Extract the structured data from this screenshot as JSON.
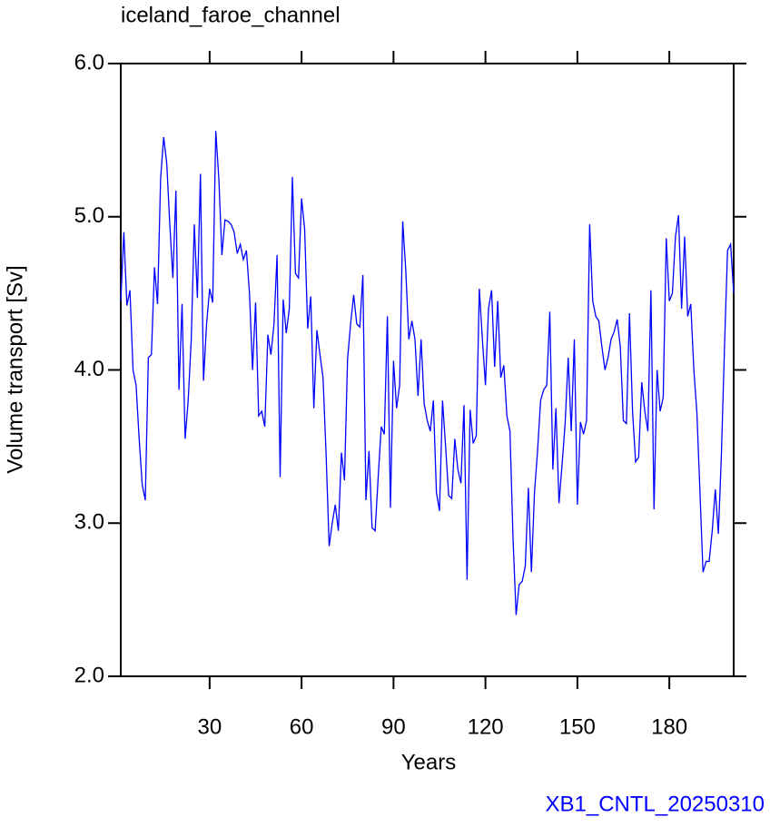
{
  "chart_data": {
    "type": "line",
    "title": "iceland_faroe_channel",
    "x_label": "Years",
    "y_label": "Volume transport [Sv]",
    "annotation": "XB1_CNTL_20250310",
    "xlim": [
      1,
      201
    ],
    "ylim": [
      2,
      6
    ],
    "xticks": [
      30,
      60,
      90,
      120,
      150,
      180
    ],
    "yticks": [
      {
        "value": 2,
        "label": "2.0"
      },
      {
        "value": 3,
        "label": "3.0"
      },
      {
        "value": 4,
        "label": "4.0"
      },
      {
        "value": 5,
        "label": "5.0"
      },
      {
        "value": 6,
        "label": "6.0"
      }
    ],
    "series": [
      {
        "color": "#0000ff",
        "x": [
          1,
          2,
          3,
          4,
          5,
          6,
          7,
          8,
          9,
          10,
          11,
          12,
          13,
          14,
          15,
          16,
          17,
          18,
          19,
          20,
          21,
          22,
          23,
          24,
          25,
          26,
          27,
          28,
          29,
          30,
          31,
          32,
          33,
          34,
          35,
          36,
          37,
          38,
          39,
          40,
          41,
          42,
          43,
          44,
          45,
          46,
          47,
          48,
          49,
          50,
          51,
          52,
          53,
          54,
          55,
          56,
          57,
          58,
          59,
          60,
          61,
          62,
          63,
          64,
          65,
          66,
          67,
          68,
          69,
          70,
          71,
          72,
          73,
          74,
          75,
          76,
          77,
          78,
          79,
          80,
          81,
          82,
          83,
          84,
          85,
          86,
          87,
          88,
          89,
          90,
          91,
          92,
          93,
          94,
          95,
          96,
          97,
          98,
          99,
          100,
          101,
          102,
          103,
          104,
          105,
          106,
          107,
          108,
          109,
          110,
          111,
          112,
          113,
          114,
          115,
          116,
          117,
          118,
          119,
          120,
          121,
          122,
          123,
          124,
          125,
          126,
          127,
          128,
          129,
          130,
          131,
          132,
          133,
          134,
          135,
          136,
          137,
          138,
          139,
          140,
          141,
          142,
          143,
          144,
          145,
          146,
          147,
          148,
          149,
          150,
          151,
          152,
          153,
          154,
          155,
          156,
          157,
          158,
          159,
          160,
          161,
          162,
          163,
          164,
          165,
          166,
          167,
          168,
          169,
          170,
          171,
          172,
          173,
          174,
          175,
          176,
          177,
          178,
          179,
          180,
          181,
          182,
          183,
          184,
          185,
          186,
          187,
          188,
          189,
          190,
          191,
          192,
          193,
          194,
          195,
          196,
          197,
          198,
          199,
          200,
          201
        ],
        "values": [
          4.45,
          4.9,
          4.42,
          4.52,
          4.0,
          3.9,
          3.55,
          3.25,
          3.15,
          4.08,
          4.1,
          4.67,
          4.43,
          5.25,
          5.52,
          5.35,
          4.95,
          4.6,
          5.17,
          3.87,
          4.43,
          3.55,
          3.8,
          4.2,
          4.95,
          4.47,
          5.28,
          3.93,
          4.3,
          4.53,
          4.44,
          5.56,
          5.25,
          4.75,
          4.98,
          4.97,
          4.95,
          4.9,
          4.76,
          4.82,
          4.72,
          4.78,
          4.5,
          4.0,
          4.44,
          3.7,
          3.73,
          3.63,
          4.23,
          4.1,
          4.3,
          4.75,
          3.3,
          4.46,
          4.24,
          4.4,
          5.26,
          4.63,
          4.6,
          5.12,
          4.92,
          4.27,
          4.48,
          3.75,
          4.26,
          4.1,
          3.95,
          3.45,
          2.85,
          3.0,
          3.12,
          2.95,
          3.46,
          3.28,
          4.07,
          4.3,
          4.49,
          4.3,
          4.28,
          4.62,
          3.15,
          3.47,
          2.97,
          2.95,
          3.3,
          3.63,
          3.58,
          4.35,
          3.1,
          4.06,
          3.75,
          3.9,
          4.97,
          4.65,
          4.2,
          4.32,
          4.2,
          3.83,
          4.2,
          3.78,
          3.67,
          3.6,
          3.8,
          3.2,
          3.08,
          3.8,
          3.5,
          3.18,
          3.16,
          3.55,
          3.35,
          3.26,
          3.77,
          2.63,
          3.74,
          3.52,
          3.57,
          4.53,
          4.2,
          3.9,
          4.4,
          4.52,
          4.02,
          4.45,
          3.95,
          4.03,
          3.7,
          3.6,
          2.9,
          2.4,
          2.6,
          2.62,
          2.72,
          3.23,
          2.68,
          3.2,
          3.47,
          3.8,
          3.87,
          3.9,
          4.38,
          3.35,
          3.75,
          3.13,
          3.38,
          3.65,
          4.08,
          3.6,
          4.2,
          3.12,
          3.66,
          3.58,
          3.67,
          4.95,
          4.45,
          4.35,
          4.32,
          4.15,
          4.0,
          4.08,
          4.2,
          4.25,
          4.33,
          4.15,
          3.67,
          3.65,
          4.37,
          3.73,
          3.4,
          3.43,
          3.92,
          3.73,
          3.6,
          4.52,
          3.09,
          4.0,
          3.73,
          3.82,
          4.86,
          4.45,
          4.5,
          4.87,
          5.01,
          4.4,
          4.87,
          4.35,
          4.43,
          4.0,
          3.72,
          3.2,
          2.68,
          2.75,
          2.75,
          2.95,
          3.22,
          2.93,
          3.45,
          4.15,
          4.78,
          4.82,
          4.5
        ]
      }
    ]
  }
}
